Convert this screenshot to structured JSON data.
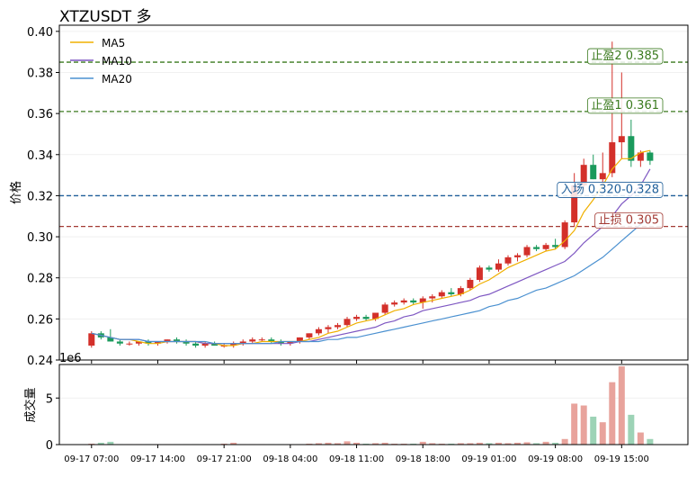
{
  "chart_data": [
    {
      "type": "candlestick",
      "title": "XTZUSDT  多",
      "y_label": "价格",
      "ylim": [
        0.24,
        0.403
      ],
      "yticks": [
        0.24,
        0.26,
        0.28,
        {
          "value": 0.3,
          "label": "0.30"
        },
        0.32,
        0.34,
        0.36,
        0.38,
        {
          "value": 0.4,
          "label": "0.40"
        }
      ],
      "grid": true,
      "up_color": "#d3302a",
      "down_color": "#1a9a5c",
      "legend": "upper left",
      "open": [
        0.247,
        0.253,
        0.251,
        0.249,
        0.248,
        0.248,
        0.249,
        0.248,
        0.249,
        0.25,
        0.249,
        0.248,
        0.247,
        0.248,
        0.247,
        0.247,
        0.248,
        0.249,
        0.25,
        0.25,
        0.249,
        0.248,
        0.249,
        0.251,
        0.253,
        0.255,
        0.256,
        0.257,
        0.26,
        0.261,
        0.26,
        0.263,
        0.267,
        0.268,
        0.269,
        0.268,
        0.27,
        0.271,
        0.273,
        0.272,
        0.275,
        0.279,
        0.285,
        0.284,
        0.287,
        0.29,
        0.291,
        0.295,
        0.294,
        0.296,
        0.295,
        0.307,
        0.325,
        0.335,
        0.328,
        0.331,
        0.346,
        0.349,
        0.337,
        0.341
      ],
      "high": [
        0.254,
        0.254,
        0.255,
        0.25,
        0.249,
        0.249,
        0.25,
        0.249,
        0.25,
        0.251,
        0.25,
        0.249,
        0.249,
        0.249,
        0.248,
        0.249,
        0.25,
        0.251,
        0.251,
        0.251,
        0.25,
        0.249,
        0.251,
        0.253,
        0.256,
        0.257,
        0.258,
        0.261,
        0.262,
        0.262,
        0.263,
        0.268,
        0.269,
        0.27,
        0.27,
        0.271,
        0.272,
        0.274,
        0.275,
        0.276,
        0.28,
        0.286,
        0.286,
        0.289,
        0.291,
        0.292,
        0.296,
        0.296,
        0.297,
        0.299,
        0.308,
        0.331,
        0.338,
        0.34,
        0.341,
        0.395,
        0.38,
        0.357,
        0.342,
        0.342
      ],
      "low": [
        0.246,
        0.25,
        0.249,
        0.247,
        0.247,
        0.247,
        0.247,
        0.247,
        0.248,
        0.248,
        0.247,
        0.246,
        0.246,
        0.247,
        0.246,
        0.246,
        0.247,
        0.248,
        0.249,
        0.248,
        0.247,
        0.247,
        0.248,
        0.25,
        0.252,
        0.253,
        0.255,
        0.256,
        0.259,
        0.259,
        0.259,
        0.262,
        0.266,
        0.267,
        0.267,
        0.265,
        0.268,
        0.27,
        0.271,
        0.271,
        0.274,
        0.278,
        0.283,
        0.283,
        0.286,
        0.288,
        0.29,
        0.293,
        0.293,
        0.294,
        0.294,
        0.305,
        0.322,
        0.328,
        0.325,
        0.329,
        0.338,
        0.334,
        0.334,
        0.335
      ],
      "close": [
        0.253,
        0.251,
        0.249,
        0.248,
        0.248,
        0.249,
        0.248,
        0.249,
        0.25,
        0.249,
        0.248,
        0.247,
        0.248,
        0.247,
        0.247,
        0.248,
        0.249,
        0.25,
        0.25,
        0.249,
        0.248,
        0.249,
        0.251,
        0.253,
        0.255,
        0.256,
        0.257,
        0.26,
        0.261,
        0.26,
        0.263,
        0.267,
        0.268,
        0.269,
        0.268,
        0.27,
        0.271,
        0.273,
        0.272,
        0.275,
        0.279,
        0.285,
        0.284,
        0.287,
        0.29,
        0.291,
        0.295,
        0.294,
        0.296,
        0.295,
        0.307,
        0.325,
        0.335,
        0.328,
        0.331,
        0.346,
        0.349,
        0.337,
        0.341,
        0.337
      ],
      "series": [
        {
          "name": "MA5",
          "color": "#f0b000",
          "values": [
            0.253,
            0.252,
            0.251,
            0.25,
            0.25,
            0.249,
            0.248,
            0.248,
            0.249,
            0.249,
            0.249,
            0.249,
            0.248,
            0.248,
            0.247,
            0.247,
            0.248,
            0.248,
            0.249,
            0.249,
            0.249,
            0.249,
            0.249,
            0.25,
            0.251,
            0.253,
            0.254,
            0.256,
            0.258,
            0.259,
            0.26,
            0.262,
            0.264,
            0.265,
            0.267,
            0.268,
            0.269,
            0.27,
            0.271,
            0.272,
            0.274,
            0.277,
            0.279,
            0.282,
            0.285,
            0.287,
            0.289,
            0.291,
            0.293,
            0.294,
            0.298,
            0.303,
            0.312,
            0.318,
            0.325,
            0.333,
            0.338,
            0.338,
            0.341,
            0.342
          ]
        },
        {
          "name": "MA10",
          "color": "#7e57c2",
          "values": [
            0.253,
            0.252,
            0.251,
            0.25,
            0.25,
            0.25,
            0.249,
            0.249,
            0.249,
            0.249,
            0.249,
            0.249,
            0.248,
            0.248,
            0.248,
            0.248,
            0.248,
            0.248,
            0.248,
            0.248,
            0.248,
            0.248,
            0.249,
            0.249,
            0.25,
            0.251,
            0.252,
            0.253,
            0.254,
            0.255,
            0.256,
            0.258,
            0.259,
            0.261,
            0.262,
            0.264,
            0.265,
            0.266,
            0.267,
            0.268,
            0.269,
            0.271,
            0.272,
            0.274,
            0.276,
            0.278,
            0.28,
            0.282,
            0.284,
            0.286,
            0.288,
            0.292,
            0.297,
            0.301,
            0.305,
            0.31,
            0.316,
            0.32,
            0.325,
            0.333
          ]
        },
        {
          "name": "MA20",
          "color": "#4a90d0",
          "values": [
            0.253,
            0.252,
            0.251,
            0.25,
            0.25,
            0.25,
            0.249,
            0.249,
            0.249,
            0.249,
            0.249,
            0.249,
            0.249,
            0.248,
            0.248,
            0.248,
            0.248,
            0.248,
            0.248,
            0.248,
            0.249,
            0.249,
            0.249,
            0.249,
            0.249,
            0.25,
            0.25,
            0.251,
            0.251,
            0.252,
            0.253,
            0.254,
            0.255,
            0.256,
            0.257,
            0.258,
            0.259,
            0.26,
            0.261,
            0.262,
            0.263,
            0.264,
            0.266,
            0.267,
            0.269,
            0.27,
            0.272,
            0.274,
            0.275,
            0.277,
            0.279,
            0.281,
            0.284,
            0.287,
            0.29,
            0.294,
            0.298,
            0.302,
            0.306,
            0.309
          ]
        }
      ],
      "hlines": [
        {
          "label": "止盈2 0.385",
          "value": 0.385,
          "color": "#3a7a1e"
        },
        {
          "label": "止盈1 0.361",
          "value": 0.361,
          "color": "#3a7a1e"
        },
        {
          "label": "入场 0.320-0.328",
          "value": 0.32,
          "color": "#1f5f9a"
        },
        {
          "label": "止损 0.305",
          "value": 0.305,
          "color": "#a33a34"
        }
      ]
    },
    {
      "type": "bar",
      "y_label": "成交量",
      "offset_label": "1e6",
      "ylim": [
        0,
        8.6
      ],
      "yticks": [
        0,
        5
      ],
      "grid": true,
      "up_color": "#e8a39c",
      "down_color": "#9dd3b6",
      "categories": [
        "09-17 07:00",
        null,
        null,
        null,
        null,
        null,
        null,
        "09-17 14:00",
        null,
        null,
        null,
        null,
        null,
        null,
        "09-17 21:00",
        null,
        null,
        null,
        null,
        null,
        null,
        "09-18 04:00",
        null,
        null,
        null,
        null,
        null,
        null,
        "09-18 11:00",
        null,
        null,
        null,
        null,
        null,
        null,
        "09-18 18:00",
        null,
        null,
        null,
        null,
        null,
        null,
        "09-19 01:00",
        null,
        null,
        null,
        null,
        null,
        null,
        "09-19 08:00",
        null,
        null,
        null,
        null,
        null,
        null,
        "09-19 15:00",
        null,
        null,
        null
      ],
      "values": [
        0.1,
        0.2,
        0.3,
        0.05,
        0.05,
        0.05,
        0.05,
        0.05,
        0.05,
        0.05,
        0.05,
        0.05,
        0.05,
        0.05,
        0.1,
        0.2,
        0.05,
        0.05,
        0.05,
        0.05,
        0.05,
        0.05,
        0.05,
        0.1,
        0.15,
        0.2,
        0.15,
        0.35,
        0.2,
        0.1,
        0.15,
        0.2,
        0.1,
        0.1,
        0.1,
        0.3,
        0.15,
        0.1,
        0.1,
        0.15,
        0.15,
        0.2,
        0.15,
        0.2,
        0.15,
        0.2,
        0.25,
        0.15,
        0.3,
        0.2,
        0.6,
        4.4,
        4.2,
        3.0,
        2.4,
        6.7,
        8.4,
        3.2,
        1.3,
        0.6
      ]
    }
  ]
}
